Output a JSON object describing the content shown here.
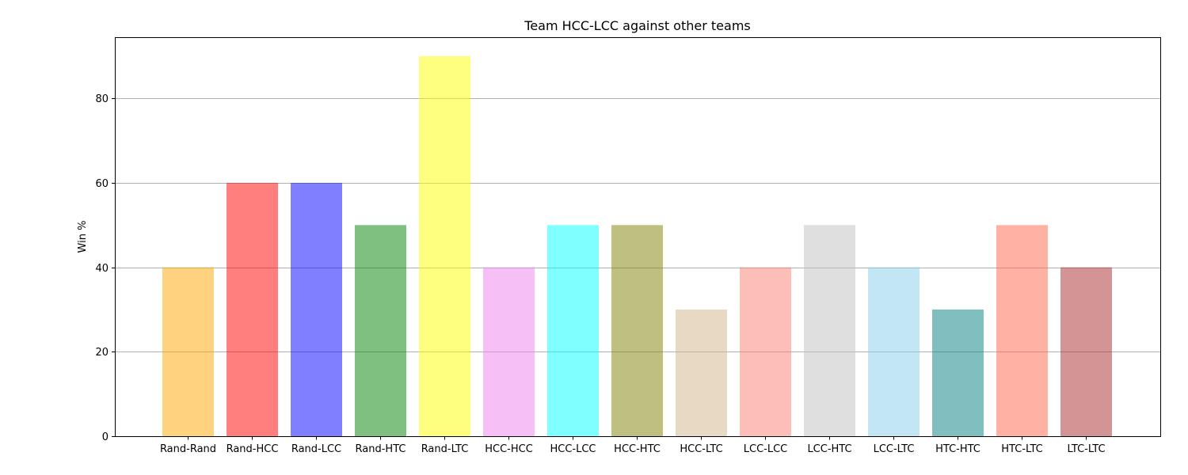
{
  "chart_data": {
    "type": "bar",
    "title": "Team HCC-LCC against other teams",
    "xlabel": "",
    "ylabel": "Win %",
    "categories": [
      "Rand-Rand",
      "Rand-HCC",
      "Rand-LCC",
      "Rand-HTC",
      "Rand-LTC",
      "HCC-HCC",
      "HCC-LCC",
      "HCC-HTC",
      "HCC-LTC",
      "LCC-LCC",
      "LCC-HTC",
      "LCC-LTC",
      "HTC-HTC",
      "HTC-LTC",
      "LTC-LTC"
    ],
    "values": [
      40,
      60,
      60,
      50,
      90,
      40,
      50,
      50,
      30,
      40,
      50,
      40,
      30,
      50,
      40
    ],
    "colors": [
      "#ffa500",
      "#ff0000",
      "#0000ff",
      "#008000",
      "#ffff00",
      "#ee82ee",
      "#00ffff",
      "#808000",
      "#d2b48c",
      "#fa8072",
      "#c0c0c0",
      "#87ceeb",
      "#008080",
      "#ff6347",
      "#a52a2a"
    ],
    "bar_opacity": 0.5,
    "ylim": [
      0,
      94.5
    ],
    "yticks": [
      0,
      20,
      40,
      60,
      80
    ],
    "grid": "y-axis",
    "legend": "none"
  }
}
